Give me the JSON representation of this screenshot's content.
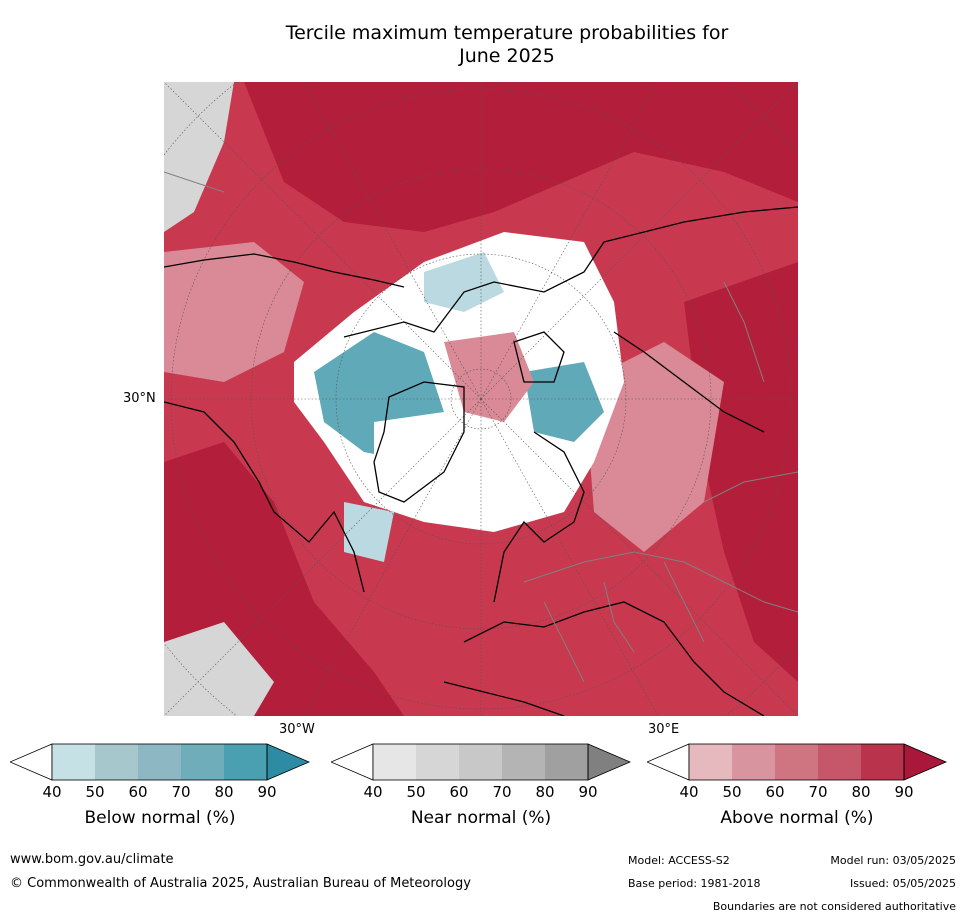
{
  "title_line1": "Tercile maximum temperature probabilities for",
  "title_line2": "June 2025",
  "map": {
    "lat_label": "30°N",
    "lon_labels": {
      "left": "30°W",
      "right": "30°E"
    },
    "colors": {
      "above_70": "#c8394f",
      "above_80": "#b31e3a",
      "above_50": "#d98a96",
      "below_70": "#60a9b8",
      "below_50": "#bad9e0",
      "near_50": "#d6d6d6",
      "white": "#ffffff",
      "coast": "#000000",
      "borders": "#808080"
    }
  },
  "colorbars": [
    {
      "title": "Below normal (%)",
      "ticks": [
        "40",
        "50",
        "60",
        "70",
        "80",
        "90"
      ],
      "colors": [
        "#ffffff",
        "#c6e1e6",
        "#a6c8cd",
        "#8cb7c3",
        "#6eadb9",
        "#4aa0b0",
        "#2d8ba3"
      ]
    },
    {
      "title": "Near normal (%)",
      "ticks": [
        "40",
        "50",
        "60",
        "70",
        "80",
        "90"
      ],
      "colors": [
        "#ffffff",
        "#e6e6e6",
        "#d6d6d6",
        "#c8c8c8",
        "#b4b4b4",
        "#a0a0a0",
        "#808080"
      ]
    },
    {
      "title": "Above normal (%)",
      "ticks": [
        "40",
        "50",
        "60",
        "70",
        "80",
        "90"
      ],
      "colors": [
        "#ffffff",
        "#e6b9bf",
        "#d9959f",
        "#cf7582",
        "#c6566a",
        "#b8334b",
        "#a9173a"
      ]
    }
  ],
  "footer": {
    "website": "www.bom.gov.au/climate",
    "copyright": "© Commonwealth of Australia 2025, Australian Bureau of Meteorology",
    "model": "Model: ACCESS-S2",
    "model_run": "Model run: 03/05/2025",
    "base_period": "Base period: 1981-2018",
    "issued": "Issued: 05/05/2025",
    "disclaimer": "Boundaries are not considered authoritative"
  }
}
